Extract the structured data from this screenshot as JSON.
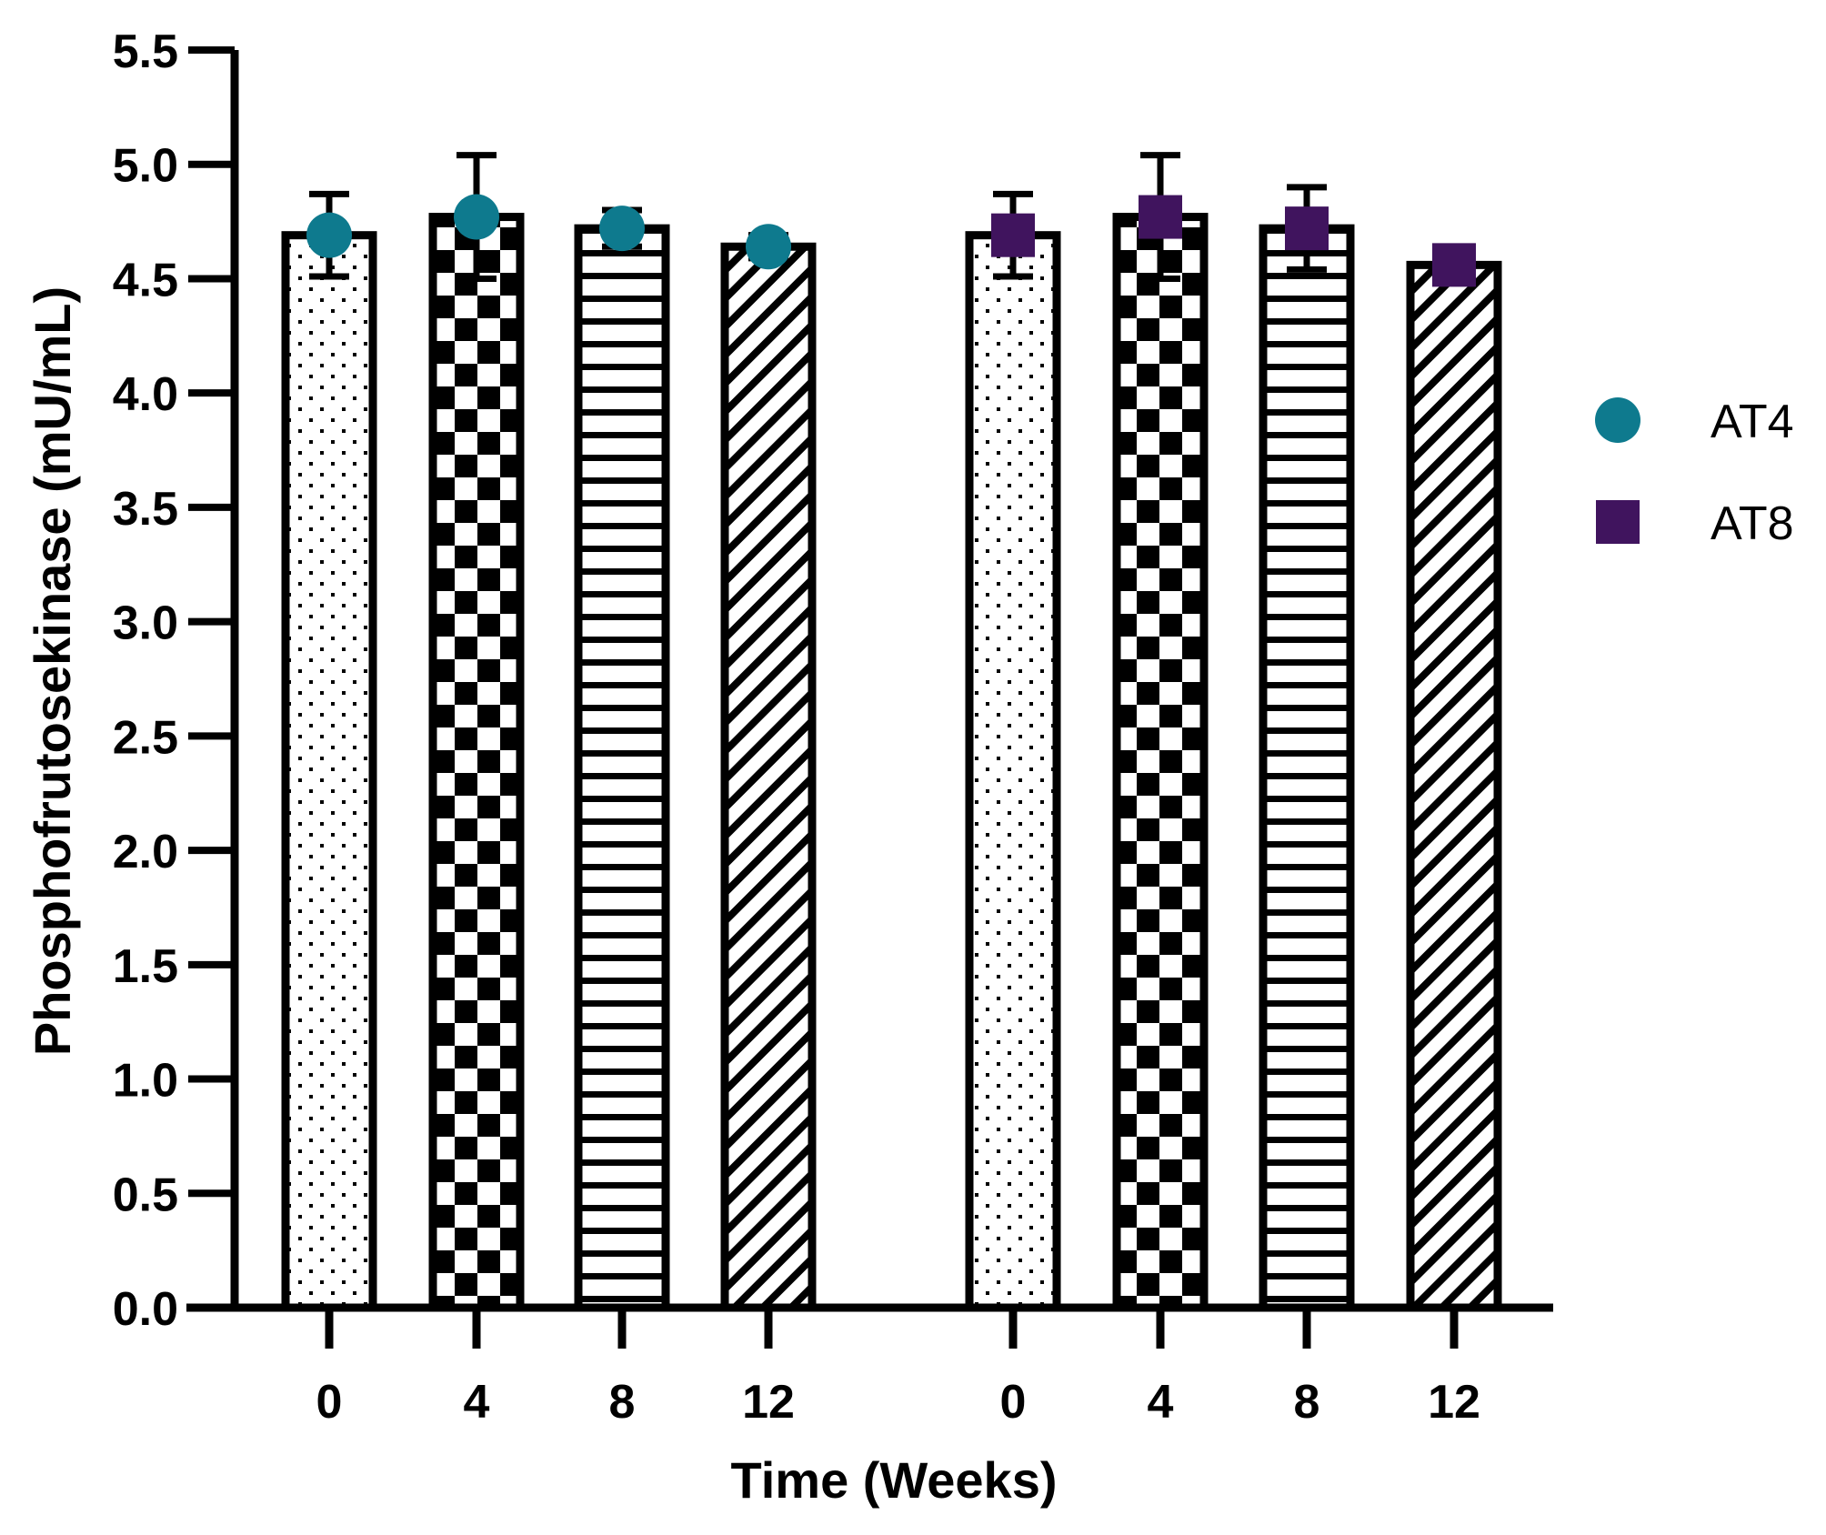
{
  "chart_data": {
    "type": "bar",
    "title": "",
    "xlabel": "Time (Weeks)",
    "ylabel": "Phosphofrutosekinase (mU/mL)",
    "ylim": [
      0,
      5.5
    ],
    "yticks": [
      "0.0",
      "0.5",
      "1.0",
      "1.5",
      "2.0",
      "2.5",
      "3.0",
      "3.5",
      "4.0",
      "4.5",
      "5.0",
      "5.5"
    ],
    "categories": [
      "0",
      "4",
      "8",
      "12"
    ],
    "legend_position": "right",
    "series": [
      {
        "name": "AT4",
        "marker": "circle",
        "color": "#0E7A8E",
        "values": [
          4.69,
          4.77,
          4.72,
          4.64
        ],
        "error": [
          0.18,
          0.27,
          0.08,
          0.05
        ],
        "patterns": [
          "dots",
          "checker",
          "hlines",
          "diagonal"
        ]
      },
      {
        "name": "AT8",
        "marker": "square",
        "color": "#40145E",
        "values": [
          4.69,
          4.77,
          4.72,
          4.56
        ],
        "error": [
          0.18,
          0.27,
          0.18,
          0.06
        ],
        "patterns": [
          "dots",
          "checker",
          "hlines",
          "diagonal"
        ]
      }
    ]
  }
}
